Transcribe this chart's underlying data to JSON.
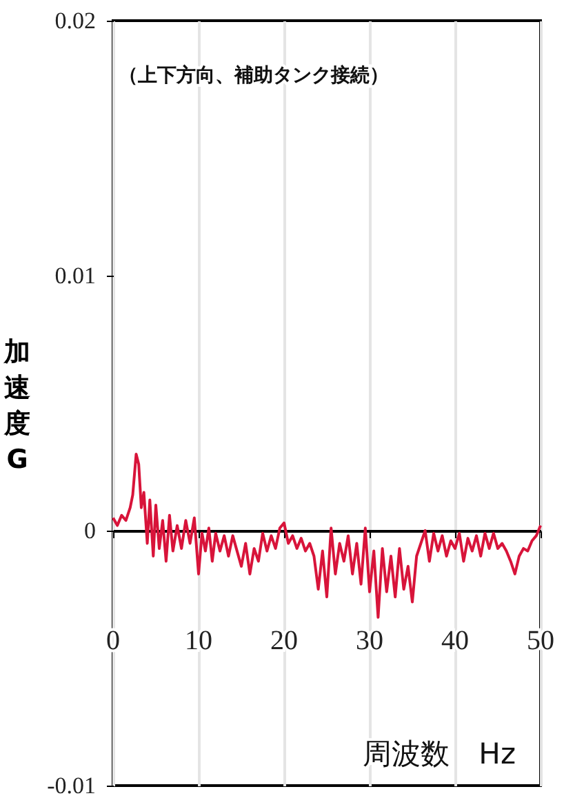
{
  "chart_data": {
    "type": "line",
    "title": "（上下方向、補助タンク接続）",
    "xlabel": "周波数　Hz",
    "ylabel": "加速度  G",
    "x": [
      0,
      0.5,
      1,
      1.5,
      2,
      2.3,
      2.7,
      3.0,
      3.3,
      3.6,
      4.0,
      4.3,
      4.7,
      5.0,
      5.4,
      5.8,
      6.2,
      6.6,
      7,
      7.5,
      8,
      8.5,
      9,
      9.5,
      10,
      10.4,
      10.8,
      11.2,
      11.6,
      12,
      12.5,
      13,
      13.5,
      14,
      14.5,
      15,
      15.5,
      16,
      16.5,
      17,
      17.5,
      18,
      18.5,
      19,
      19.5,
      20,
      20.5,
      21,
      21.5,
      22,
      22.5,
      23,
      23.5,
      24,
      24.5,
      25,
      25.5,
      26,
      26.5,
      27,
      27.5,
      28,
      28.5,
      29,
      29.5,
      30,
      30.5,
      31,
      31.5,
      32,
      32.5,
      33,
      33.5,
      34,
      34.5,
      35,
      35.5,
      36,
      36.5,
      37,
      37.5,
      38,
      38.5,
      39,
      39.5,
      40,
      40.5,
      41,
      41.5,
      42,
      42.5,
      43,
      43.5,
      44,
      44.5,
      45,
      45.5,
      46,
      46.5,
      47,
      47.5,
      48,
      48.5,
      49,
      49.5,
      50
    ],
    "series": [
      {
        "color": "#d8143a",
        "values": [
          0.0005,
          0.0002,
          0.0006,
          0.0004,
          0.0009,
          0.0014,
          0.003,
          0.0026,
          0.0009,
          0.0015,
          -0.0005,
          0.0012,
          -0.001,
          0.001,
          -0.0007,
          0.0004,
          -0.0012,
          0.0006,
          -0.0008,
          0.0002,
          -0.0007,
          0.0004,
          -0.0005,
          0.0005,
          -0.0017,
          -0.0001,
          -0.0008,
          0.0001,
          -0.0012,
          -0.0001,
          -0.0008,
          -0.0002,
          -0.001,
          -0.0002,
          -0.0008,
          -0.0014,
          -0.0005,
          -0.0017,
          -0.0007,
          -0.0012,
          -0.0001,
          -0.0008,
          -0.0002,
          -0.0007,
          0.0001,
          0.0003,
          -0.0005,
          -0.0002,
          -0.0007,
          -0.0003,
          -0.0008,
          -0.0005,
          -0.001,
          -0.0023,
          -0.0008,
          -0.0026,
          0.0001,
          -0.0017,
          -0.0005,
          -0.0012,
          -0.0002,
          -0.0017,
          -0.0005,
          -0.0021,
          0.0001,
          -0.0024,
          -0.0008,
          -0.0034,
          -0.0007,
          -0.0024,
          -0.001,
          -0.0026,
          -0.0007,
          -0.0023,
          -0.0014,
          -0.0028,
          -0.001,
          -0.0005,
          0,
          -0.0012,
          -0.0001,
          -0.0008,
          -0.0002,
          -0.001,
          -0.0004,
          -0.0007,
          -0.0001,
          -0.0012,
          -0.0003,
          -0.0008,
          -0.0002,
          -0.001,
          -0.0001,
          -0.0007,
          -0.0001,
          -0.0007,
          -0.0005,
          -0.0008,
          -0.0012,
          -0.0017,
          -0.001,
          -0.0007,
          -0.0008,
          -0.0004,
          -0.0002,
          0.0002
        ]
      }
    ],
    "xlim": [
      0,
      50
    ],
    "xticks": [
      0,
      10,
      20,
      30,
      40,
      50
    ],
    "ylim": [
      -0.01,
      0.02
    ],
    "yticks": [
      -0.01,
      0,
      0.01,
      0.02
    ],
    "grid": "x",
    "marker": "none",
    "line_style": "solid"
  }
}
